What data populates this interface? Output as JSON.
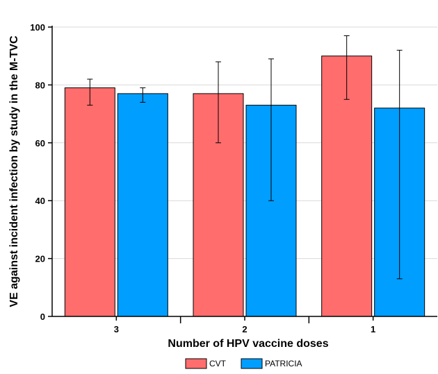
{
  "chart_data": {
    "type": "bar",
    "title": "",
    "xlabel": "Number of HPV vaccine doses",
    "ylabel": "VE against incident infection by study in the M-TVC",
    "ylim": [
      0,
      100
    ],
    "yticks": [
      0,
      20,
      40,
      60,
      80,
      100
    ],
    "categories": [
      "3",
      "2",
      "1"
    ],
    "grid": "horizontal",
    "legend_position": "bottom",
    "series": [
      {
        "name": "CVT",
        "color": "#ff6d6d",
        "values": [
          79,
          77,
          90
        ],
        "error_low": [
          73,
          60,
          75
        ],
        "error_high": [
          82,
          88,
          97
        ]
      },
      {
        "name": "PATRICIA",
        "color": "#009eff",
        "values": [
          77,
          73,
          72
        ],
        "error_low": [
          74,
          40,
          13
        ],
        "error_high": [
          79,
          89,
          92
        ]
      }
    ]
  }
}
